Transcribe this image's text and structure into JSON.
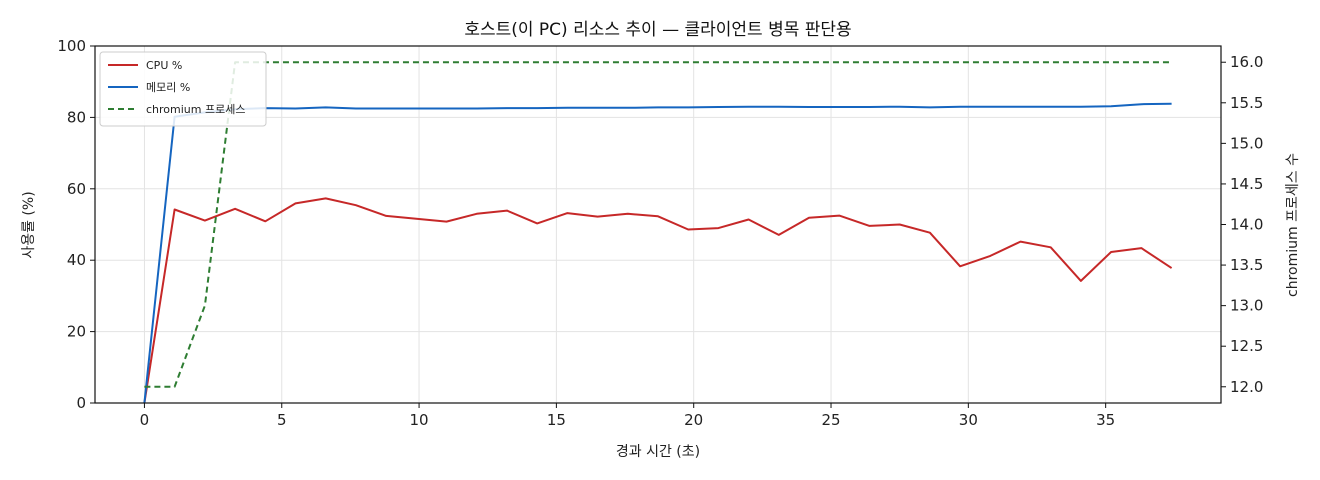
{
  "chart_data": {
    "type": "line",
    "title": "호스트(이 PC) 리소스 추이 — 클라이언트 병목 판단용",
    "xlabel": "경과 시간 (초)",
    "ylabel": "사용률 (%)",
    "ylabel_right": "chromium 프로세스 수",
    "xlim": [
      -1.8,
      39.2
    ],
    "ylim": [
      0,
      100
    ],
    "ylim_right": [
      11.8,
      16.2
    ],
    "xticks": [
      "0",
      "5",
      "10",
      "15",
      "20",
      "25",
      "30",
      "35"
    ],
    "yticks": [
      "0",
      "20",
      "40",
      "60",
      "80",
      "100"
    ],
    "yticks_right": [
      "12.0",
      "12.5",
      "13.0",
      "13.5",
      "14.0",
      "14.5",
      "15.0",
      "15.5",
      "16.0"
    ],
    "grid": true,
    "legend_position": "top-left",
    "x": [
      0,
      1.1,
      2.2,
      3.3,
      4.4,
      5.5,
      6.6,
      7.7,
      8.8,
      9.9,
      11.0,
      12.1,
      13.2,
      14.3,
      15.4,
      16.5,
      17.6,
      18.7,
      19.8,
      20.9,
      22.0,
      23.1,
      24.2,
      25.3,
      26.4,
      27.5,
      28.6,
      29.7,
      30.8,
      31.9,
      33.0,
      34.1,
      35.2,
      36.3,
      37.4
    ],
    "series": [
      {
        "name": "CPU %",
        "axis": "left",
        "style": "solid",
        "color": "#c62828",
        "values": [
          0,
          54.2,
          51.1,
          54.4,
          50.9,
          55.9,
          57.3,
          55.4,
          52.4,
          51.6,
          50.8,
          53.0,
          53.9,
          50.3,
          53.2,
          52.2,
          53.0,
          52.3,
          48.6,
          49.0,
          51.4,
          47.1,
          51.9,
          52.5,
          49.6,
          50.0,
          47.7,
          38.3,
          41.2,
          45.2,
          43.6,
          34.2,
          42.3,
          43.4,
          37.8
        ]
      },
      {
        "name": "메모리 %",
        "axis": "left",
        "style": "solid",
        "color": "#1565c0",
        "values": [
          0,
          80.2,
          81.4,
          82.3,
          82.6,
          82.5,
          82.8,
          82.5,
          82.5,
          82.5,
          82.5,
          82.5,
          82.6,
          82.6,
          82.7,
          82.7,
          82.7,
          82.8,
          82.8,
          82.9,
          83.0,
          83.0,
          82.9,
          82.9,
          82.9,
          83.0,
          82.8,
          83.0,
          83.0,
          83.0,
          83.0,
          83.0,
          83.1,
          83.7,
          83.8
        ]
      },
      {
        "name": "chromium 프로세스",
        "axis": "right",
        "style": "dashed",
        "color": "#2e7d32",
        "values": [
          12,
          12,
          13,
          16,
          16,
          16,
          16,
          16,
          16,
          16,
          16,
          16,
          16,
          16,
          16,
          16,
          16,
          16,
          16,
          16,
          16,
          16,
          16,
          16,
          16,
          16,
          16,
          16,
          16,
          16,
          16,
          16,
          16,
          16,
          16
        ]
      }
    ]
  }
}
